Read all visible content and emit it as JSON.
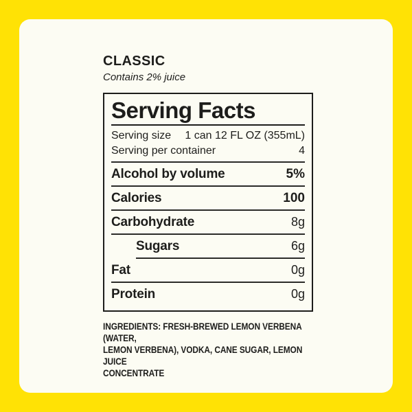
{
  "colors": {
    "frame_yellow": "#ffe205",
    "panel_background": "#fcfcf3",
    "text": "#1d1d1b"
  },
  "header": {
    "product_name": "CLASSIC",
    "subtitle": "Contains 2% juice"
  },
  "serving_facts": {
    "title": "Serving Facts",
    "serving_size": {
      "label": "Serving size",
      "value": "1 can 12 FL OZ (355mL)"
    },
    "servings_per_container": {
      "label": "Serving per container",
      "value": "4"
    },
    "rows": [
      {
        "label": "Alcohol by volume",
        "value": "5%"
      },
      {
        "label": "Calories",
        "value": "100"
      },
      {
        "label": "Carbohydrate",
        "value": "8g"
      },
      {
        "label": "Sugars",
        "value": "6g"
      },
      {
        "label": "Fat",
        "value": "0g"
      },
      {
        "label": "Protein",
        "value": "0g"
      }
    ]
  },
  "ingredients": {
    "lines": [
      "INGREDIENTS: FRESH-BREWED LEMON VERBENA (WATER,",
      "LEMON VERBENA), VODKA, CANE SUGAR, LEMON JUICE",
      "CONCENTRATE"
    ]
  }
}
